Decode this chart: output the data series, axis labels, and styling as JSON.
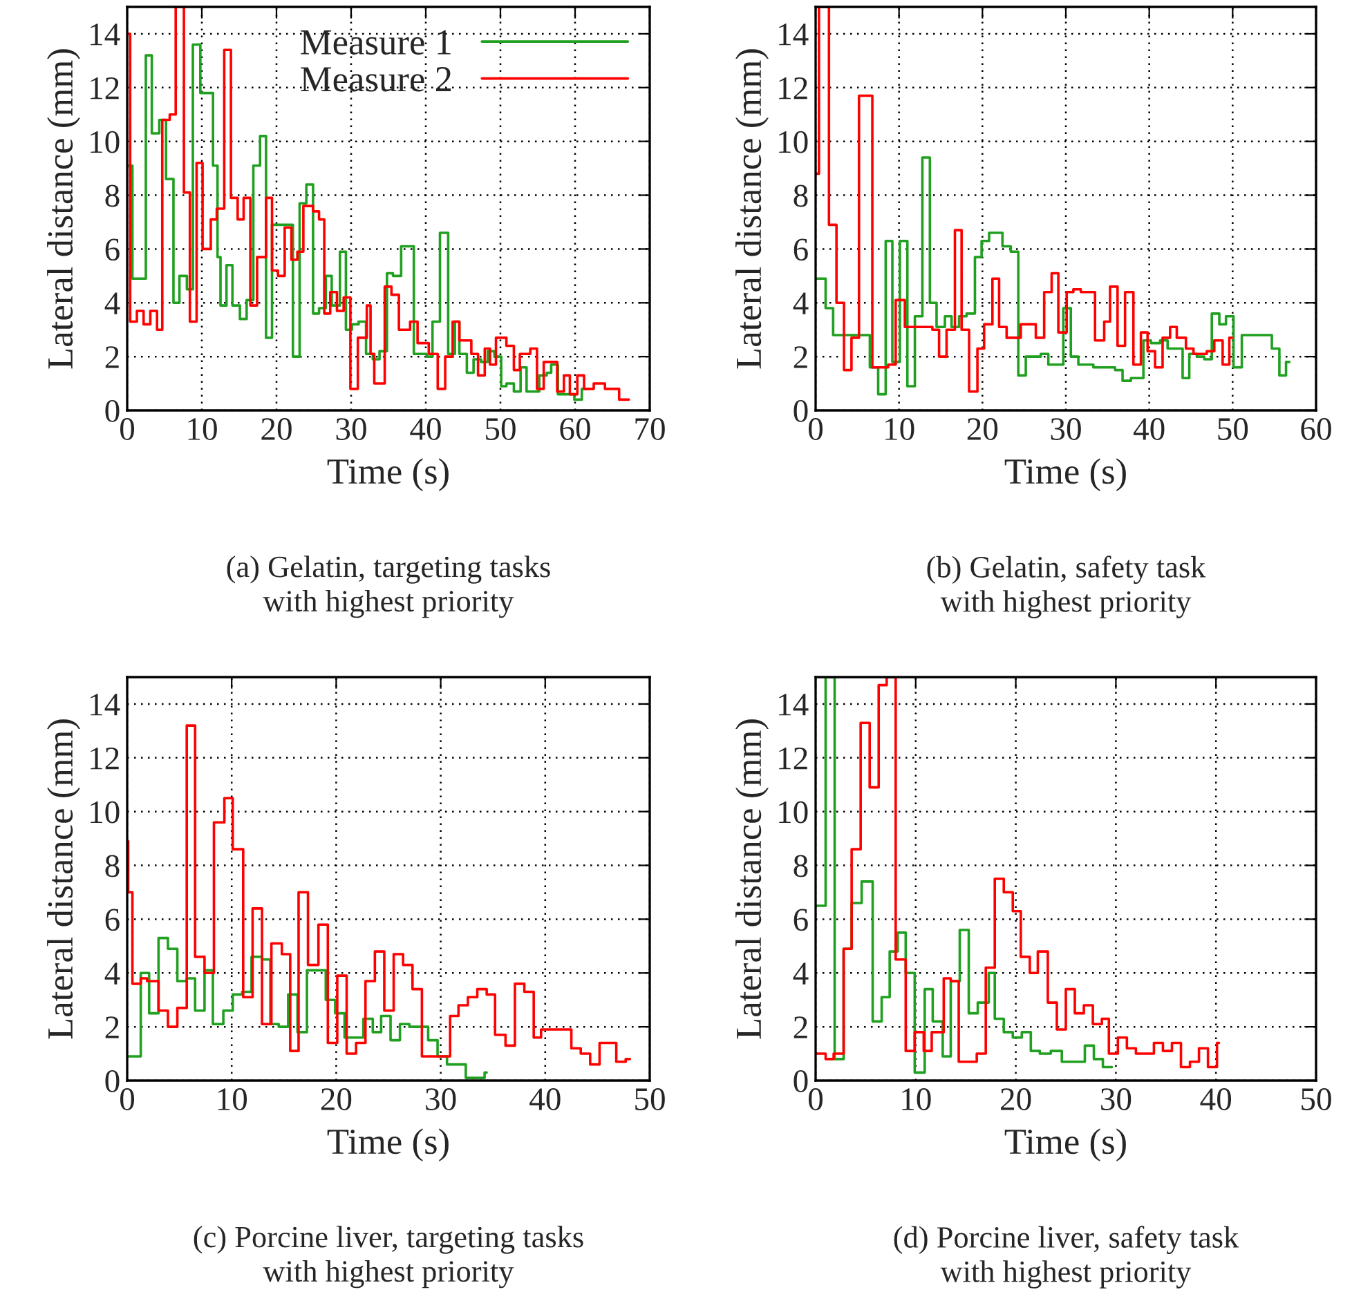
{
  "chart_data": [
    {
      "type": "step",
      "xlabel": "Time (s)",
      "ylabel": "Lateral distance (mm)",
      "annotations": [
        "(a) Gelatin, targeting tasks\nwith highest priority"
      ],
      "xlim": [
        0,
        70
      ],
      "xticks": [
        0,
        10,
        20,
        30,
        40,
        50,
        60,
        70
      ],
      "ylim": [
        0,
        15
      ],
      "yticks": [
        0,
        2,
        4,
        6,
        8,
        10,
        12,
        14
      ],
      "grid": true,
      "legend": "top right",
      "series": [
        {
          "name": "Measure 1",
          "color": "#20a020",
          "x": [
            0,
            0.7,
            2.5,
            3.3,
            4.3,
            5.2,
            6.2,
            7.0,
            8.0,
            8.8,
            9.8,
            11.5,
            12.1,
            12.5,
            13.3,
            14.1,
            15.1,
            16.0,
            16.9,
            17.8,
            18.6,
            19.4,
            22.2,
            23.1,
            24.0,
            24.9,
            25.7,
            26.6,
            27.4,
            28.5,
            29.3,
            30.1,
            31.0,
            32.0,
            32.9,
            33.8,
            34.8,
            35.6,
            36.7,
            38.4,
            40.1,
            40.9,
            41.9,
            43.0,
            43.9,
            44.5,
            45.5,
            46.4,
            47.4,
            48.3,
            49.2,
            50.1,
            50.8,
            51.8,
            52.7,
            53.5,
            55.2,
            56.2,
            56.8,
            57.7,
            59.9,
            60.9,
            61.8
          ],
          "values": [
            9.1,
            4.9,
            13.2,
            10.3,
            10.8,
            8.6,
            4.0,
            5.0,
            4.5,
            13.6,
            11.8,
            9.1,
            5.7,
            3.9,
            5.4,
            3.9,
            3.4,
            4.1,
            9.1,
            10.2,
            2.7,
            6.9,
            2.0,
            7.7,
            8.4,
            3.6,
            3.8,
            5.0,
            3.9,
            5.9,
            3.0,
            3.2,
            3.3,
            2.1,
            1.9,
            2.2,
            5.1,
            5.0,
            6.1,
            2.1,
            2.0,
            3.3,
            6.6,
            2.1,
            3.3,
            2.1,
            1.4,
            1.9,
            1.8,
            2.2,
            2.0,
            0.9,
            1.0,
            0.7,
            1.6,
            0.7,
            1.3,
            1.4,
            1.7,
            0.6,
            0.4,
            0.8,
            0.8
          ]
        },
        {
          "name": "Measure 2",
          "color": "#ff0000",
          "x": [
            0,
            0.4,
            1.3,
            2.2,
            3.1,
            4.0,
            4.7,
            5.7,
            6.5,
            7.6,
            8.4,
            9.3,
            10.1,
            11.2,
            12.0,
            13.0,
            13.9,
            14.8,
            15.6,
            16.5,
            17.4,
            18.6,
            19.4,
            20.2,
            21.1,
            22.0,
            22.8,
            23.6,
            24.9,
            25.7,
            26.4,
            27.2,
            28.1,
            29.0,
            29.9,
            30.9,
            32.1,
            32.6,
            33.1,
            34.5,
            35.4,
            36.4,
            37.9,
            38.9,
            40.4,
            41.6,
            42.6,
            43.6,
            44.5,
            46.1,
            47.0,
            47.9,
            48.6,
            49.4,
            50.8,
            51.8,
            52.6,
            54.0,
            54.9,
            55.8,
            57.6,
            58.5,
            59.3,
            60.3,
            61.2,
            62.5,
            63.1,
            64.0,
            65.9,
            67.2
          ],
          "values": [
            14.0,
            3.3,
            3.7,
            3.2,
            3.7,
            3.0,
            10.8,
            11.0,
            15,
            8.1,
            3.3,
            9.2,
            6.0,
            7.1,
            7.5,
            13.4,
            7.9,
            7.1,
            7.9,
            3.9,
            5.7,
            7.9,
            5.2,
            5.0,
            6.8,
            5.6,
            5.9,
            7.6,
            7.4,
            7.1,
            3.6,
            4.4,
            3.7,
            4.2,
            0.8,
            2.7,
            3.9,
            2.1,
            1.0,
            4.6,
            4.3,
            3.0,
            3.3,
            2.5,
            2.1,
            0.8,
            2.0,
            3.3,
            2.6,
            2.1,
            1.3,
            2.3,
            1.7,
            2.7,
            2.4,
            1.5,
            2.1,
            2.3,
            0.8,
            1.8,
            0.7,
            1.3,
            0.6,
            1.3,
            0.8,
            1.0,
            1.0,
            0.8,
            0.4,
            0.4
          ]
        }
      ]
    },
    {
      "type": "step",
      "xlabel": "Time (s)",
      "ylabel": "Lateral distance (mm)",
      "annotations": [
        "(b) Gelatin, safety task\nwith highest priority"
      ],
      "xlim": [
        0,
        60
      ],
      "xticks": [
        0,
        10,
        20,
        30,
        40,
        50,
        60
      ],
      "ylim": [
        0,
        15
      ],
      "yticks": [
        0,
        2,
        4,
        6,
        8,
        10,
        12,
        14
      ],
      "grid": true,
      "series": [
        {
          "color": "#20a020",
          "x": [
            0,
            1.2,
            2.1,
            6.5,
            7.5,
            8.4,
            9.2,
            10.1,
            11.0,
            11.9,
            12.8,
            13.7,
            14.5,
            15.5,
            16.3,
            17.2,
            18.1,
            19.1,
            19.9,
            20.8,
            22.4,
            23.4,
            24.3,
            25.2,
            27.0,
            27.9,
            29.7,
            30.6,
            31.5,
            33.3,
            34.1,
            35.9,
            36.8,
            37.8,
            39.3,
            40.2,
            41.3,
            42.2,
            44.0,
            44.8,
            45.7,
            46.6,
            47.5,
            48.4,
            49.2,
            50.1,
            51.1,
            54.7,
            55.6,
            56.4,
            56.8
          ],
          "values": [
            4.9,
            3.8,
            2.8,
            1.6,
            0.6,
            6.3,
            1.8,
            6.3,
            0.9,
            3.5,
            9.4,
            4.0,
            3.1,
            3.5,
            3.1,
            3.5,
            3.6,
            5.7,
            6.3,
            6.6,
            6.1,
            5.9,
            1.3,
            2.0,
            2.1,
            1.7,
            3.8,
            2.0,
            1.7,
            1.6,
            1.6,
            1.5,
            1.1,
            1.2,
            2.6,
            2.5,
            2.6,
            2.3,
            1.2,
            2.1,
            2.0,
            1.9,
            3.6,
            3.2,
            3.5,
            1.6,
            2.8,
            2.3,
            1.3,
            1.8,
            1.8
          ]
        },
        {
          "color": "#ff0000",
          "x": [
            0,
            0.4,
            1.6,
            2.5,
            3.4,
            4.3,
            5.2,
            6.8,
            8.7,
            9.6,
            10.7,
            14.0,
            14.8,
            15.7,
            16.7,
            17.5,
            18.4,
            19.4,
            20.2,
            21.2,
            22.0,
            22.9,
            24.6,
            26.4,
            27.4,
            28.3,
            29.1,
            30.1,
            30.9,
            31.8,
            33.5,
            34.6,
            35.3,
            36.2,
            37.1,
            38.1,
            39.0,
            39.8,
            40.7,
            41.6,
            42.5,
            43.3,
            44.4,
            45.3,
            46.9,
            47.8,
            48.8,
            49.6,
            49.9
          ],
          "values": [
            8.8,
            15,
            6.9,
            4.0,
            1.5,
            2.7,
            11.7,
            1.6,
            1.7,
            4.1,
            3.1,
            3.0,
            2.0,
            3.0,
            6.7,
            3.0,
            0.7,
            2.3,
            3.2,
            4.9,
            3.1,
            2.7,
            3.2,
            2.7,
            4.4,
            5.1,
            2.9,
            4.4,
            4.5,
            4.4,
            2.6,
            3.3,
            4.6,
            2.4,
            4.4,
            1.7,
            2.9,
            2.2,
            1.6,
            2.7,
            3.1,
            2.7,
            2.3,
            2.1,
            2.2,
            2.6,
            1.7,
            2.7,
            2.7
          ]
        }
      ]
    },
    {
      "type": "step",
      "xlabel": "Time (s)",
      "ylabel": "Lateral distance (mm)",
      "annotations": [
        "(c) Porcine liver, targeting tasks\nwith highest priority"
      ],
      "xlim": [
        0,
        50
      ],
      "xticks": [
        0,
        10,
        20,
        30,
        40,
        50
      ],
      "ylim": [
        0,
        15
      ],
      "yticks": [
        0,
        2,
        4,
        6,
        8,
        10,
        12,
        14
      ],
      "grid": true,
      "series": [
        {
          "color": "#20a020",
          "x": [
            0,
            1.3,
            2.1,
            3.0,
            3.9,
            4.8,
            5.7,
            6.5,
            7.4,
            8.2,
            9.2,
            10.1,
            11.0,
            11.9,
            12.9,
            13.7,
            14.5,
            15.4,
            16.3,
            17.2,
            19.0,
            19.9,
            20.8,
            22.6,
            23.5,
            24.3,
            25.2,
            26.1,
            27.0,
            28.8,
            29.7,
            30.6,
            32.4,
            34.2,
            34.4
          ],
          "values": [
            0.9,
            4.0,
            2.5,
            5.3,
            4.9,
            3.7,
            3.8,
            2.6,
            4.1,
            2.1,
            2.6,
            3.2,
            3.3,
            4.6,
            4.5,
            2.1,
            2.0,
            3.2,
            1.8,
            4.1,
            3.0,
            2.5,
            1.6,
            2.3,
            1.8,
            2.4,
            1.5,
            2.1,
            2.0,
            1.5,
            0.9,
            0.6,
            0.1,
            0.3,
            0.3
          ]
        },
        {
          "color": "#ff0000",
          "x": [
            0,
            0.1,
            0.5,
            1.3,
            1.9,
            3.0,
            3.9,
            4.8,
            5.7,
            6.5,
            7.4,
            8.3,
            9.3,
            10.1,
            11.1,
            12.0,
            12.9,
            13.8,
            14.8,
            15.6,
            16.4,
            17.3,
            18.3,
            19.2,
            20.1,
            21.0,
            21.9,
            22.8,
            23.7,
            24.6,
            25.5,
            26.4,
            27.3,
            28.2,
            30.9,
            31.7,
            32.6,
            33.5,
            34.4,
            35.2,
            36.2,
            37.1,
            38.0,
            38.9,
            39.6,
            42.5,
            43.4,
            44.3,
            45.2,
            46.8,
            47.7,
            48.1
          ],
          "values": [
            8.9,
            7.0,
            3.6,
            3.8,
            3.7,
            2.6,
            2.0,
            2.7,
            13.2,
            4.6,
            4.0,
            9.6,
            10.5,
            8.6,
            3.1,
            6.4,
            2.1,
            5.1,
            4.7,
            1.1,
            7.0,
            4.3,
            5.8,
            1.4,
            3.9,
            1.0,
            1.4,
            3.7,
            4.8,
            2.6,
            4.7,
            4.3,
            3.4,
            0.9,
            2.4,
            2.8,
            3.1,
            3.4,
            3.2,
            1.7,
            1.3,
            3.6,
            3.3,
            1.6,
            1.9,
            1.2,
            1.0,
            0.6,
            1.4,
            0.7,
            0.8,
            0.8
          ]
        }
      ]
    },
    {
      "type": "step",
      "xlabel": "Time (s)",
      "ylabel": "Lateral distance (mm)",
      "annotations": [
        "(d) Porcine liver, safety task\nwith highest priority"
      ],
      "xlim": [
        0,
        50
      ],
      "xticks": [
        0,
        10,
        20,
        30,
        40,
        50
      ],
      "ylim": [
        0,
        15
      ],
      "yticks": [
        0,
        2,
        4,
        6,
        8,
        10,
        12,
        14
      ],
      "grid": true,
      "series": [
        {
          "color": "#20a020",
          "x": [
            0,
            1.0,
            1.9,
            2.8,
            3.6,
            4.6,
            5.7,
            6.6,
            7.4,
            8.2,
            9.0,
            9.9,
            10.9,
            11.7,
            12.7,
            13.5,
            14.4,
            15.3,
            16.2,
            17.3,
            17.9,
            18.8,
            19.7,
            20.6,
            21.5,
            22.4,
            23.5,
            24.6,
            26.0,
            26.9,
            27.8,
            28.7,
            29.6
          ],
          "values": [
            6.5,
            15,
            0.8,
            4.9,
            6.6,
            7.4,
            2.2,
            3.1,
            4.8,
            5.5,
            4.0,
            0.3,
            3.4,
            2.2,
            0.9,
            3.7,
            5.6,
            2.5,
            2.9,
            4.0,
            2.3,
            1.8,
            1.6,
            1.8,
            1.1,
            1.0,
            1.1,
            0.7,
            0.7,
            1.3,
            0.8,
            0.5,
            0.5
          ]
        },
        {
          "color": "#ff0000",
          "x": [
            0,
            1.0,
            1.8,
            2.8,
            3.6,
            4.5,
            5.4,
            6.3,
            7.1,
            8.0,
            9.0,
            9.9,
            10.8,
            11.6,
            12.8,
            13.5,
            14.3,
            16.1,
            17.0,
            17.9,
            18.8,
            19.7,
            20.5,
            21.4,
            22.2,
            23.2,
            24.1,
            25.0,
            25.9,
            26.8,
            27.7,
            28.6,
            29.3,
            30.2,
            31.1,
            32.0,
            33.8,
            34.7,
            35.6,
            36.5,
            37.4,
            38.3,
            39.2,
            40.1,
            40.3
          ],
          "values": [
            1.0,
            0.8,
            1.0,
            4.9,
            8.6,
            13.3,
            10.9,
            14.7,
            15,
            4.5,
            1.1,
            1.8,
            1.1,
            1.8,
            3.8,
            3.7,
            0.7,
            1.0,
            4.2,
            7.5,
            7.0,
            6.3,
            4.6,
            4.0,
            4.8,
            2.9,
            1.9,
            3.4,
            2.5,
            2.8,
            2.1,
            2.3,
            1.0,
            1.6,
            1.2,
            1.0,
            1.4,
            1.1,
            1.4,
            0.5,
            0.7,
            1.2,
            0.5,
            1.4,
            1.4
          ]
        }
      ]
    }
  ]
}
